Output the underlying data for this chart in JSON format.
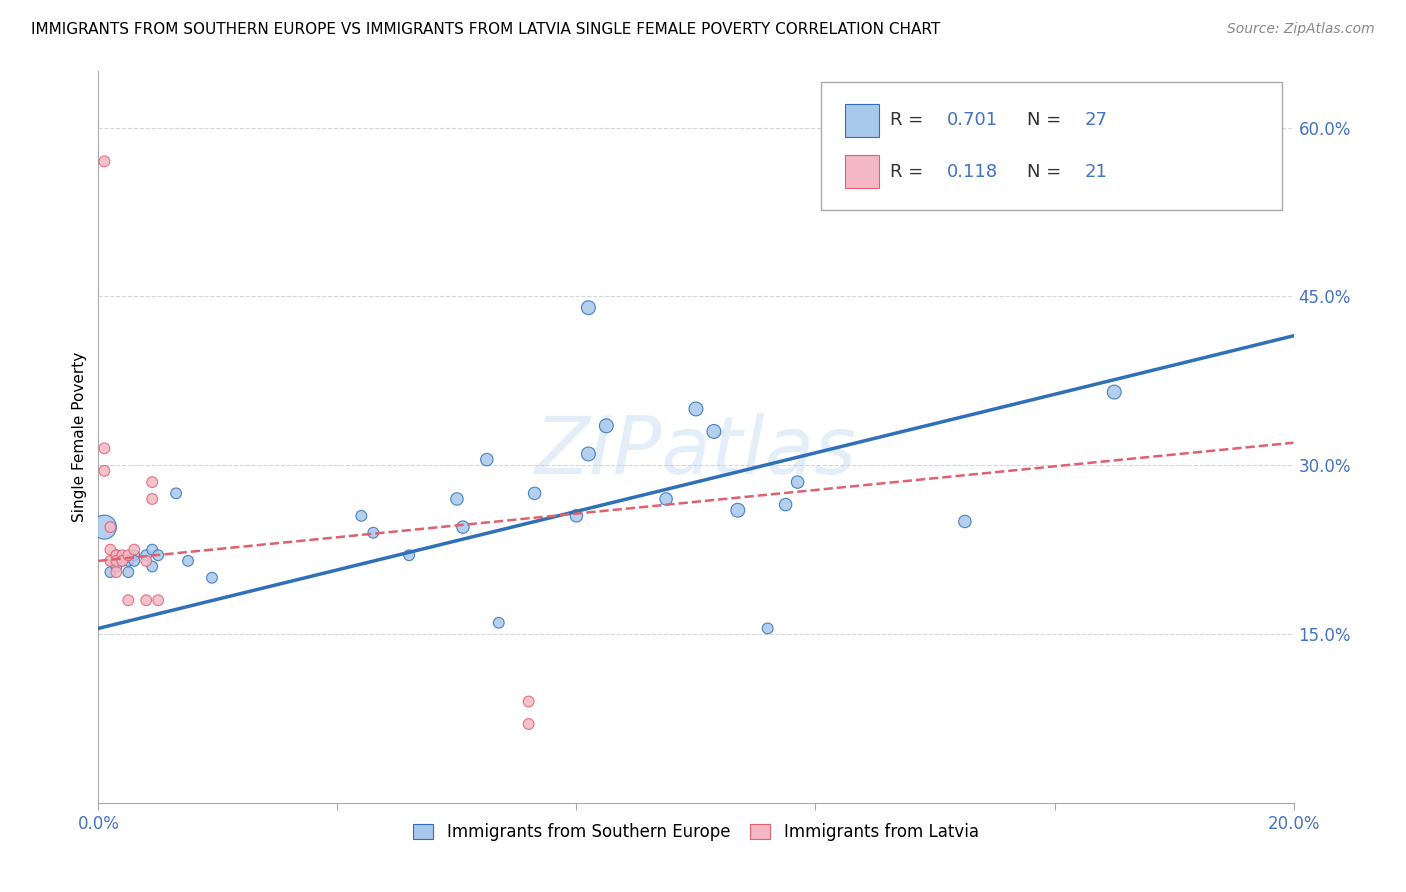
{
  "title": "IMMIGRANTS FROM SOUTHERN EUROPE VS IMMIGRANTS FROM LATVIA SINGLE FEMALE POVERTY CORRELATION CHART",
  "source": "Source: ZipAtlas.com",
  "ylabel": "Single Female Poverty",
  "legend_label_blue": "Immigrants from Southern Europe",
  "legend_label_pink": "Immigrants from Latvia",
  "watermark": "ZIPatlas",
  "xlim": [
    0.0,
    0.2
  ],
  "ylim": [
    0.0,
    0.65
  ],
  "yticks": [
    0.15,
    0.3,
    0.45,
    0.6
  ],
  "ytick_labels": [
    "15.0%",
    "30.0%",
    "45.0%",
    "60.0%"
  ],
  "xticks": [
    0.0,
    0.04,
    0.08,
    0.12,
    0.16,
    0.2
  ],
  "xtick_labels": [
    "0.0%",
    "",
    "",
    "",
    "",
    "20.0%"
  ],
  "blue_color": "#A8C8EC",
  "pink_color": "#F4B8C4",
  "line_blue_color": "#3070B8",
  "line_pink_color": "#E06070",
  "blue_scatter": [
    [
      0.001,
      0.245
    ],
    [
      0.002,
      0.205
    ],
    [
      0.003,
      0.21
    ],
    [
      0.003,
      0.22
    ],
    [
      0.004,
      0.215
    ],
    [
      0.005,
      0.205
    ],
    [
      0.005,
      0.215
    ],
    [
      0.006,
      0.22
    ],
    [
      0.006,
      0.215
    ],
    [
      0.008,
      0.22
    ],
    [
      0.009,
      0.21
    ],
    [
      0.009,
      0.225
    ],
    [
      0.01,
      0.22
    ],
    [
      0.013,
      0.275
    ],
    [
      0.015,
      0.215
    ],
    [
      0.019,
      0.2
    ],
    [
      0.044,
      0.255
    ],
    [
      0.046,
      0.24
    ],
    [
      0.052,
      0.22
    ],
    [
      0.06,
      0.27
    ],
    [
      0.061,
      0.245
    ],
    [
      0.065,
      0.305
    ],
    [
      0.067,
      0.16
    ],
    [
      0.073,
      0.275
    ],
    [
      0.08,
      0.255
    ],
    [
      0.082,
      0.44
    ],
    [
      0.082,
      0.31
    ],
    [
      0.085,
      0.335
    ],
    [
      0.095,
      0.27
    ],
    [
      0.1,
      0.35
    ],
    [
      0.103,
      0.33
    ],
    [
      0.107,
      0.26
    ],
    [
      0.112,
      0.155
    ],
    [
      0.115,
      0.265
    ],
    [
      0.117,
      0.285
    ],
    [
      0.145,
      0.25
    ],
    [
      0.17,
      0.365
    ]
  ],
  "pink_scatter": [
    [
      0.001,
      0.57
    ],
    [
      0.001,
      0.315
    ],
    [
      0.001,
      0.295
    ],
    [
      0.002,
      0.245
    ],
    [
      0.002,
      0.225
    ],
    [
      0.002,
      0.215
    ],
    [
      0.003,
      0.22
    ],
    [
      0.003,
      0.215
    ],
    [
      0.003,
      0.205
    ],
    [
      0.004,
      0.22
    ],
    [
      0.004,
      0.215
    ],
    [
      0.005,
      0.18
    ],
    [
      0.005,
      0.22
    ],
    [
      0.006,
      0.225
    ],
    [
      0.008,
      0.215
    ],
    [
      0.008,
      0.18
    ],
    [
      0.009,
      0.27
    ],
    [
      0.009,
      0.285
    ],
    [
      0.01,
      0.18
    ],
    [
      0.072,
      0.09
    ],
    [
      0.072,
      0.07
    ]
  ],
  "blue_sizes": [
    300,
    60,
    60,
    60,
    60,
    60,
    60,
    60,
    60,
    60,
    60,
    60,
    60,
    60,
    60,
    60,
    60,
    60,
    60,
    80,
    80,
    80,
    60,
    80,
    80,
    100,
    100,
    100,
    80,
    100,
    100,
    100,
    60,
    80,
    80,
    80,
    100
  ],
  "pink_sizes": [
    60,
    60,
    60,
    60,
    60,
    60,
    60,
    60,
    60,
    60,
    60,
    60,
    60,
    60,
    60,
    60,
    60,
    60,
    60,
    60,
    60
  ],
  "blue_line_x": [
    0.0,
    0.2
  ],
  "blue_line_y": [
    0.155,
    0.415
  ],
  "pink_line_x": [
    0.0,
    0.2
  ],
  "pink_line_y": [
    0.215,
    0.32
  ],
  "title_fontsize": 11,
  "axis_color": "#4472C4",
  "grid_color": "#CCCCCC",
  "legend_r_eq_color": "#333333",
  "legend_val_color": "#4472C4"
}
